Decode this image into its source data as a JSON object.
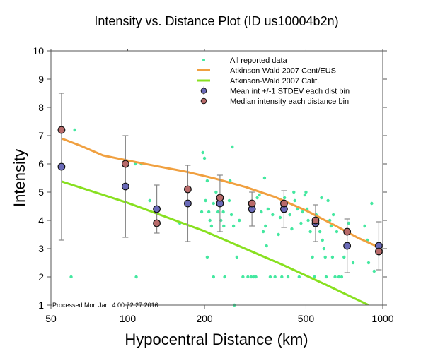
{
  "chart_data": {
    "type": "scatter",
    "title": "Intensity vs. Distance Plot (ID us10004b2n)",
    "xlabel": "Hypocentral Distance (km)",
    "ylabel": "Intensity",
    "xscale": "log",
    "xlim": [
      50,
      1000
    ],
    "ylim": [
      1,
      10
    ],
    "xticks": [
      50,
      100,
      200,
      500,
      1000
    ],
    "xtick_labels": [
      "50",
      "100",
      "200",
      "500",
      "1000"
    ],
    "yticks": [
      1,
      2,
      3,
      4,
      5,
      6,
      7,
      8,
      9,
      10
    ],
    "ytick_labels": [
      "1",
      "2",
      "3",
      "4",
      "5",
      "6",
      "7",
      "8",
      "9",
      "10"
    ],
    "grid": false,
    "legend_position": "top-right",
    "legend": [
      {
        "label": "All reported data",
        "kind": "dot",
        "color": "#44e8a0"
      },
      {
        "label": "Atkinson-Wald 2007 Cent/EUS",
        "kind": "line",
        "color": "#f0a040"
      },
      {
        "label": "Atkinson-Wald 2007 Calif.",
        "kind": "line",
        "color": "#88e020"
      },
      {
        "label": "Mean int +/-1 STDEV each dist bin",
        "kind": "marker-err",
        "color": "#6a6ab8"
      },
      {
        "label": "Median intensity each distance bin",
        "kind": "marker",
        "color": "#b86a6a"
      }
    ],
    "annotation": "Processed Mon Jan  4 00:32:27 2016",
    "series": [
      {
        "name": "Atkinson-Wald 2007 Cent/EUS",
        "type": "line",
        "color": "#f0a040",
        "x": [
          55,
          65,
          80,
          100,
          130,
          170,
          220,
          290,
          380,
          500,
          650,
          800,
          965
        ],
        "y": [
          6.9,
          6.65,
          6.3,
          6.12,
          5.92,
          5.72,
          5.48,
          5.18,
          4.82,
          4.35,
          3.82,
          3.38,
          3.05
        ]
      },
      {
        "name": "Atkinson-Wald 2007 Calif.",
        "type": "line",
        "color": "#88e020",
        "x": [
          55,
          100,
          200,
          400,
          600,
          880
        ],
        "y": [
          5.38,
          4.62,
          3.62,
          2.45,
          1.72,
          1.0
        ]
      },
      {
        "name": "All reported data",
        "type": "scatter",
        "color": "#44e8a0",
        "points": [
          [
            60,
            2.0
          ],
          [
            62,
            7.2
          ],
          [
            107,
            6.0
          ],
          [
            113,
            6.0
          ],
          [
            108,
            2.0
          ],
          [
            122,
            4.7
          ],
          [
            160,
            3.9
          ],
          [
            197,
            6.4
          ],
          [
            200,
            6.2
          ],
          [
            205,
            5.4
          ],
          [
            202,
            4.7
          ],
          [
            195,
            4.3
          ],
          [
            208,
            4.3
          ],
          [
            210,
            4.0
          ],
          [
            213,
            3.8
          ],
          [
            217,
            2.0
          ],
          [
            205,
            2.7
          ],
          [
            217,
            4.6
          ],
          [
            222,
            5.0
          ],
          [
            226,
            4.3
          ],
          [
            232,
            4.0
          ],
          [
            237,
            4.3
          ],
          [
            238,
            3.8
          ],
          [
            240,
            2.0
          ],
          [
            250,
            4.7
          ],
          [
            252,
            5.4
          ],
          [
            257,
            6.6
          ],
          [
            255,
            4.2
          ],
          [
            260,
            3.8
          ],
          [
            262,
            1.0
          ],
          [
            268,
            2.7
          ],
          [
            274,
            4.0
          ],
          [
            283,
            2.0
          ],
          [
            296,
            2.0
          ],
          [
            300,
            4.4
          ],
          [
            305,
            2.0
          ],
          [
            312,
            2.0
          ],
          [
            318,
            2.0
          ],
          [
            322,
            4.8
          ],
          [
            328,
            4.9
          ],
          [
            334,
            4.3
          ],
          [
            340,
            3.6
          ],
          [
            344,
            5.5
          ],
          [
            347,
            3.8
          ],
          [
            350,
            3.1
          ],
          [
            355,
            4.4
          ],
          [
            362,
            2.0
          ],
          [
            370,
            4.2
          ],
          [
            378,
            2.0
          ],
          [
            390,
            3.5
          ],
          [
            396,
            4.1
          ],
          [
            402,
            2.0
          ],
          [
            412,
            4.8
          ],
          [
            418,
            4.4
          ],
          [
            425,
            2.0
          ],
          [
            432,
            4.2
          ],
          [
            440,
            3.7
          ],
          [
            448,
            5.0
          ],
          [
            452,
            4.7
          ],
          [
            462,
            4.4
          ],
          [
            470,
            2.0
          ],
          [
            478,
            3.9
          ],
          [
            485,
            4.3
          ],
          [
            495,
            4.9
          ],
          [
            500,
            5.0
          ],
          [
            505,
            4.4
          ],
          [
            510,
            4.0
          ],
          [
            520,
            3.6
          ],
          [
            530,
            2.7
          ],
          [
            540,
            2.0
          ],
          [
            548,
            4.2
          ],
          [
            553,
            3.9
          ],
          [
            560,
            4.1
          ],
          [
            567,
            3.6
          ],
          [
            575,
            4.8
          ],
          [
            580,
            3.3
          ],
          [
            588,
            3.0
          ],
          [
            595,
            2.7
          ],
          [
            600,
            2.0
          ],
          [
            610,
            4.7
          ],
          [
            620,
            4.0
          ],
          [
            627,
            3.8
          ],
          [
            635,
            2.7
          ],
          [
            640,
            4.2
          ],
          [
            650,
            2.0
          ],
          [
            660,
            3.6
          ],
          [
            673,
            2.0
          ],
          [
            690,
            2.0
          ],
          [
            705,
            2.7
          ],
          [
            735,
            3.9
          ],
          [
            765,
            2.5
          ],
          [
            850,
            3.8
          ],
          [
            870,
            3.3
          ],
          [
            880,
            2.5
          ],
          [
            905,
            4.6
          ],
          [
            925,
            2.2
          ]
        ]
      },
      {
        "name": "Mean int +/-1 STDEV each dist bin",
        "type": "errorbar",
        "color": "#6a6ab8",
        "x": [
          55,
          98,
          130,
          172,
          230,
          307,
          410,
          545,
          725,
          965
        ],
        "y": [
          5.9,
          5.2,
          4.4,
          4.6,
          4.6,
          4.4,
          4.4,
          3.9,
          3.1,
          3.1
        ],
        "lower": [
          3.3,
          3.4,
          3.55,
          3.25,
          3.6,
          3.8,
          3.75,
          3.25,
          2.15,
          2.25
        ],
        "upper": [
          8.5,
          7.0,
          5.25,
          5.95,
          5.6,
          5.0,
          5.05,
          4.55,
          4.05,
          3.95
        ]
      },
      {
        "name": "Median intensity each distance bin",
        "type": "scatter",
        "color": "#b86a6a",
        "x": [
          55,
          98,
          130,
          172,
          230,
          307,
          410,
          545,
          725,
          965
        ],
        "y": [
          7.2,
          6.0,
          3.9,
          5.1,
          4.8,
          4.6,
          4.6,
          4.0,
          3.6,
          2.9
        ]
      }
    ]
  }
}
